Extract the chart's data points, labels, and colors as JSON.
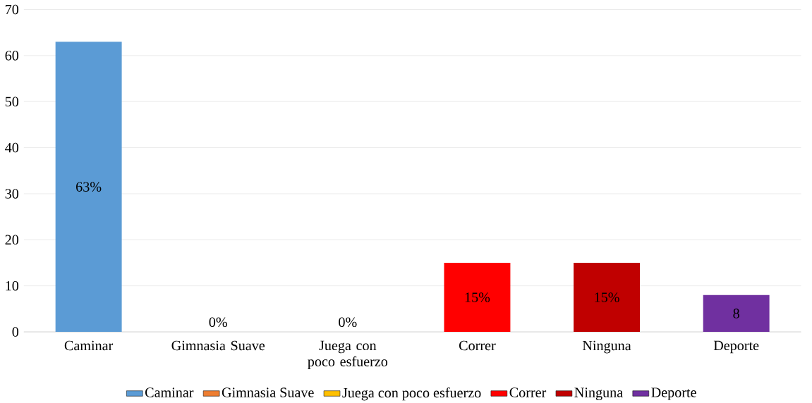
{
  "chart_data": {
    "type": "bar",
    "categories": [
      "Caminar",
      "Gimnasia Suave",
      "Juega con poco esfuerzo",
      "Correr",
      "Ninguna",
      "Deporte"
    ],
    "series": [
      {
        "name": "Caminar",
        "color": "#5b9bd5",
        "values": [
          63,
          null,
          null,
          null,
          null,
          null
        ],
        "value_labels": [
          "63%",
          null,
          null,
          null,
          null,
          null
        ]
      },
      {
        "name": "Gimnasia Suave",
        "color": "#ed7d31",
        "values": [
          null,
          0,
          null,
          null,
          null,
          null
        ],
        "value_labels": [
          null,
          "0%",
          null,
          null,
          null,
          null
        ]
      },
      {
        "name": "Juega con poco esfuerzo",
        "color": "#ffc000",
        "values": [
          null,
          null,
          0,
          null,
          null,
          null
        ],
        "value_labels": [
          null,
          null,
          "0%",
          null,
          null,
          null
        ]
      },
      {
        "name": "Correr",
        "color": "#ff0000",
        "values": [
          null,
          null,
          null,
          15,
          null,
          null
        ],
        "value_labels": [
          null,
          null,
          null,
          "15%",
          null,
          null
        ]
      },
      {
        "name": "Ninguna",
        "color": "#c00000",
        "values": [
          null,
          null,
          null,
          null,
          15,
          null
        ],
        "value_labels": [
          null,
          null,
          null,
          null,
          "15%",
          null
        ]
      },
      {
        "name": "Deporte",
        "color": "#7030a0",
        "values": [
          null,
          null,
          null,
          null,
          null,
          8
        ],
        "value_labels": [
          null,
          null,
          null,
          null,
          null,
          "8"
        ]
      }
    ],
    "ylim": [
      0,
      70
    ],
    "yticks": [
      0,
      10,
      20,
      30,
      40,
      50,
      60,
      70
    ],
    "grid": "y",
    "legend": "bottom"
  }
}
